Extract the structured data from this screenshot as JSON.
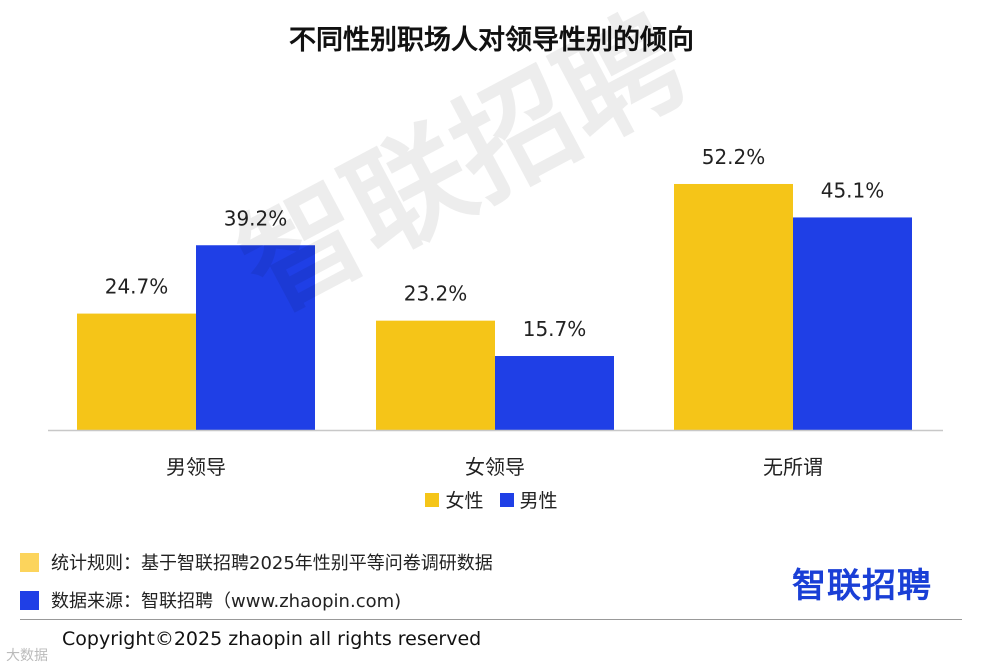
{
  "chart_data": {
    "type": "bar",
    "title": "不同性别职场人对领导性别的倾向",
    "categories": [
      "男领导",
      "女领导",
      "无所谓"
    ],
    "series": [
      {
        "name": "女性",
        "values": [
          24.7,
          23.2,
          52.2
        ],
        "color": "#f5c518"
      },
      {
        "name": "男性",
        "values": [
          39.2,
          15.7,
          45.1
        ],
        "color": "#1f3fe6"
      }
    ],
    "value_suffix": "%",
    "data_labels": [
      [
        "24.7%",
        "23.2%",
        "52.2%"
      ],
      [
        "39.2%",
        "15.7%",
        "45.1%"
      ]
    ],
    "ylim": [
      0,
      55
    ],
    "grid": false,
    "legend_position": "bottom"
  },
  "watermark": "智联招聘",
  "footer": {
    "stat_rule": {
      "text": "统计规则：基于智联招聘2025年性别平等问卷调研数据",
      "color": "#fcd45c"
    },
    "data_source": {
      "text": "数据来源：智联招聘（www.zhaopin.com)",
      "color": "#1f3fe6"
    }
  },
  "logo": "智联招聘",
  "copyright": "Copyright©2025 zhaopin all rights reserved",
  "corner_mark": "大数据"
}
